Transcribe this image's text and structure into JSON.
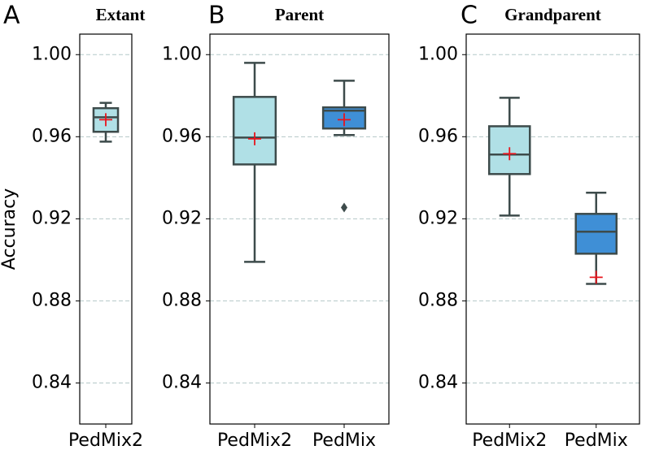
{
  "chart_data": [
    {
      "type": "box",
      "panel_label": "A",
      "title": "Extant",
      "y_label": "Accuracy",
      "categories": [
        "PedMix2"
      ],
      "colors": [
        "#b0e0e6"
      ],
      "boxes": [
        {
          "whislo": 0.9576,
          "q1": 0.9624,
          "med": 0.9695,
          "q3": 0.9739,
          "whishi": 0.9765,
          "mean": 0.9683
        }
      ],
      "ylim": [
        0.82,
        1.01
      ],
      "yticks": [
        0.84,
        0.88,
        0.92,
        0.96,
        {
          "value": 1.0,
          "label": "1.00"
        }
      ],
      "grid": true
    },
    {
      "type": "box",
      "panel_label": "B",
      "title": "Parent",
      "categories": [
        "PedMix2",
        "PedMix"
      ],
      "colors": [
        "#b0e0e6",
        "#3f8fd6"
      ],
      "boxes": [
        {
          "whislo": 0.899,
          "q1": 0.9465,
          "med": 0.9596,
          "q3": 0.9794,
          "whishi": 0.996,
          "mean": 0.959
        },
        {
          "whislo": 0.9608,
          "q1": 0.964,
          "med": 0.9727,
          "q3": 0.9743,
          "whishi": 0.9873,
          "mean": 0.9683,
          "fliers": [
            0.9255
          ]
        }
      ],
      "ylim": [
        0.82,
        1.01
      ],
      "yticks": [
        0.84,
        0.88,
        0.92,
        0.96,
        {
          "value": 1.0,
          "label": "1.00"
        }
      ],
      "grid": true
    },
    {
      "type": "box",
      "panel_label": "C",
      "title": "Grandparent",
      "categories": [
        "PedMix2",
        "PedMix"
      ],
      "colors": [
        "#b0e0e6",
        "#3f8fd6"
      ],
      "boxes": [
        {
          "whislo": 0.9216,
          "q1": 0.9418,
          "med": 0.9513,
          "q3": 0.9651,
          "whishi": 0.979,
          "mean": 0.9517
        },
        {
          "whislo": 0.8883,
          "q1": 0.903,
          "med": 0.9137,
          "q3": 0.9224,
          "whishi": 0.9327,
          "mean": 0.8915
        }
      ],
      "ylim": [
        0.82,
        1.01
      ],
      "yticks": [
        0.84,
        0.88,
        0.92,
        0.96,
        {
          "value": 1.0,
          "label": "1.00"
        }
      ],
      "grid": true
    }
  ]
}
